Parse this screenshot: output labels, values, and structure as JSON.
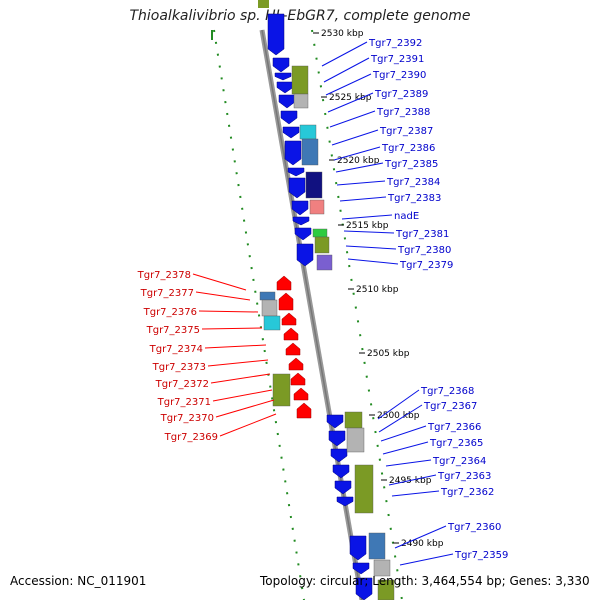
{
  "title": "Thioalkalivibrio sp. HL-EbGR7, complete genome",
  "footer": {
    "accession": "Accession: NC_011901",
    "topology": "Topology: circular; Length: 3,464,554 bp; Genes: 3,330"
  },
  "colors": {
    "backbone": "#808080",
    "cds": "#0a14e6",
    "reverse_cds": "#ff0000",
    "forward_label": "#0000cc",
    "reverse_label": "#cc0000",
    "tick_mark": "#228b22",
    "cog_olive": "#7b9a25",
    "cog_cyan": "#27c8d8",
    "cog_steel": "#3f78b5",
    "cog_grey": "#b3b3b3",
    "cog_pink": "#f08080",
    "cog_green": "#2ecc40",
    "cog_purple": "#7a5fd0",
    "cog_navy": "#111180"
  },
  "axis_ticks": [
    "2530 kbp",
    "2525 kbp",
    "2520 kbp",
    "2515 kbp",
    "2510 kbp",
    "2505 kbp",
    "2500 kbp",
    "2495 kbp",
    "2490 kbp"
  ],
  "forward_genes": [
    "Tgr7_2392",
    "Tgr7_2391",
    "Tgr7_2390",
    "Tgr7_2389",
    "Tgr7_2388",
    "Tgr7_2387",
    "Tgr7_2386",
    "Tgr7_2385",
    "Tgr7_2384",
    "Tgr7_2383",
    "nadE",
    "Tgr7_2381",
    "Tgr7_2380",
    "Tgr7_2379",
    "Tgr7_2368",
    "Tgr7_2367",
    "Tgr7_2366",
    "Tgr7_2365",
    "Tgr7_2364",
    "Tgr7_2363",
    "Tgr7_2362",
    "Tgr7_2360",
    "Tgr7_2359"
  ],
  "reverse_genes": [
    "Tgr7_2378",
    "Tgr7_2377",
    "Tgr7_2376",
    "Tgr7_2375",
    "Tgr7_2374",
    "Tgr7_2373",
    "Tgr7_2372",
    "Tgr7_2371",
    "Tgr7_2370",
    "Tgr7_2369"
  ]
}
